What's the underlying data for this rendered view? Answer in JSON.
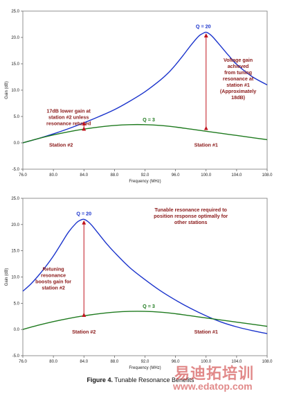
{
  "chart_data": [
    {
      "type": "line",
      "xlabel": "Frequency (MHz)",
      "ylabel": "Gain (dB)",
      "xlim": [
        76.0,
        108.0
      ],
      "ylim": [
        -5.0,
        25.0
      ],
      "xticks": [
        "76.0",
        "80.0",
        "84.0",
        "88.0",
        "92.0",
        "96.0",
        "100.0",
        "104.0",
        "108.0"
      ],
      "yticks": [
        "-5.0",
        "0.0",
        "5.0",
        "10.0",
        "15.0",
        "20.0",
        "25.0"
      ],
      "series": [
        {
          "name": "Q = 20",
          "color": "#1a33cc",
          "x": [
            76,
            78,
            80,
            82,
            84,
            86,
            88,
            90,
            92,
            94,
            95,
            96,
            97,
            98,
            99,
            99.5,
            100,
            100.5,
            101,
            102,
            103,
            104,
            106,
            108
          ],
          "y": [
            0.0,
            0.8,
            1.7,
            2.7,
            3.8,
            5.0,
            6.3,
            7.9,
            9.7,
            11.9,
            13.2,
            14.8,
            16.6,
            18.5,
            20.2,
            20.7,
            21.0,
            20.6,
            19.9,
            18.2,
            16.5,
            14.9,
            12.6,
            11.0
          ]
        },
        {
          "name": "Q = 3",
          "color": "#1e7a1e",
          "x": [
            76,
            78,
            80,
            82,
            84,
            86,
            88,
            90,
            92,
            94,
            96,
            98,
            100,
            102,
            104,
            106,
            108
          ],
          "y": [
            0.0,
            0.8,
            1.5,
            2.1,
            2.6,
            3.0,
            3.3,
            3.45,
            3.45,
            3.3,
            3.0,
            2.6,
            2.2,
            1.8,
            1.4,
            1.0,
            0.6
          ]
        }
      ],
      "annotations": {
        "q20": "Q = 20",
        "q3": "Q = 3",
        "lower_gain": [
          "17dB lower gain at",
          "station #2 unless",
          "resonance retuned"
        ],
        "voltage_gain": [
          "Voltage gain",
          "achieved",
          "from tuning",
          "resonance at",
          "station #1",
          "(Approximately",
          "18dB)"
        ],
        "station2": "Station #2",
        "station1": "Station #1"
      }
    },
    {
      "type": "line",
      "xlabel": "Frequency (MHz)",
      "ylabel": "Gain (dB)",
      "xlim": [
        76.0,
        108.0
      ],
      "ylim": [
        -5.0,
        25.0
      ],
      "xticks": [
        "76.0",
        "80.0",
        "84.0",
        "88.0",
        "92.0",
        "96.0",
        "100.0",
        "104.0",
        "108.0"
      ],
      "yticks": [
        "-5.0",
        "0.0",
        "5.0",
        "10.0",
        "15.0",
        "20.0",
        "25.0"
      ],
      "series": [
        {
          "name": "Q = 20",
          "color": "#1a33cc",
          "x": [
            76,
            77,
            78,
            79,
            80,
            81,
            82,
            83,
            83.5,
            84,
            84.5,
            85,
            86,
            87,
            88,
            90,
            92,
            94,
            96,
            98,
            100,
            102,
            104,
            106,
            108
          ],
          "y": [
            7.3,
            8.6,
            10.2,
            12.0,
            14.0,
            16.3,
            18.6,
            20.3,
            20.8,
            21.0,
            20.6,
            19.9,
            18.1,
            16.3,
            14.7,
            11.8,
            9.5,
            7.4,
            5.6,
            4.0,
            2.6,
            1.4,
            0.5,
            -0.2,
            -0.8
          ]
        },
        {
          "name": "Q = 3",
          "color": "#1e7a1e",
          "x": [
            76,
            78,
            80,
            82,
            84,
            86,
            88,
            90,
            92,
            94,
            96,
            98,
            100,
            102,
            104,
            106,
            108
          ],
          "y": [
            0.0,
            0.8,
            1.5,
            2.1,
            2.6,
            3.0,
            3.3,
            3.45,
            3.45,
            3.3,
            3.0,
            2.6,
            2.2,
            1.8,
            1.4,
            1.0,
            0.6
          ]
        }
      ],
      "annotations": {
        "q20": "Q = 20",
        "q3": "Q = 3",
        "tunable": [
          "Tunable resonance required to",
          "position response optimally for",
          "other stations"
        ],
        "retuning": [
          "Retuning",
          "resonance",
          "boosts gain for",
          "station #2"
        ],
        "station2": "Station #2",
        "station1": "Station #1"
      }
    }
  ],
  "caption": {
    "figure": "Figure 4.",
    "text": "Tunable Resonance Benefits"
  },
  "watermark": {
    "main": "易迪拓培训",
    "url": "www.edatop.com"
  },
  "colors": {
    "q20": "#1a33cc",
    "q3": "#1e7a1e",
    "annotation": "#8b1a1a",
    "arrow": "#c0141e"
  }
}
